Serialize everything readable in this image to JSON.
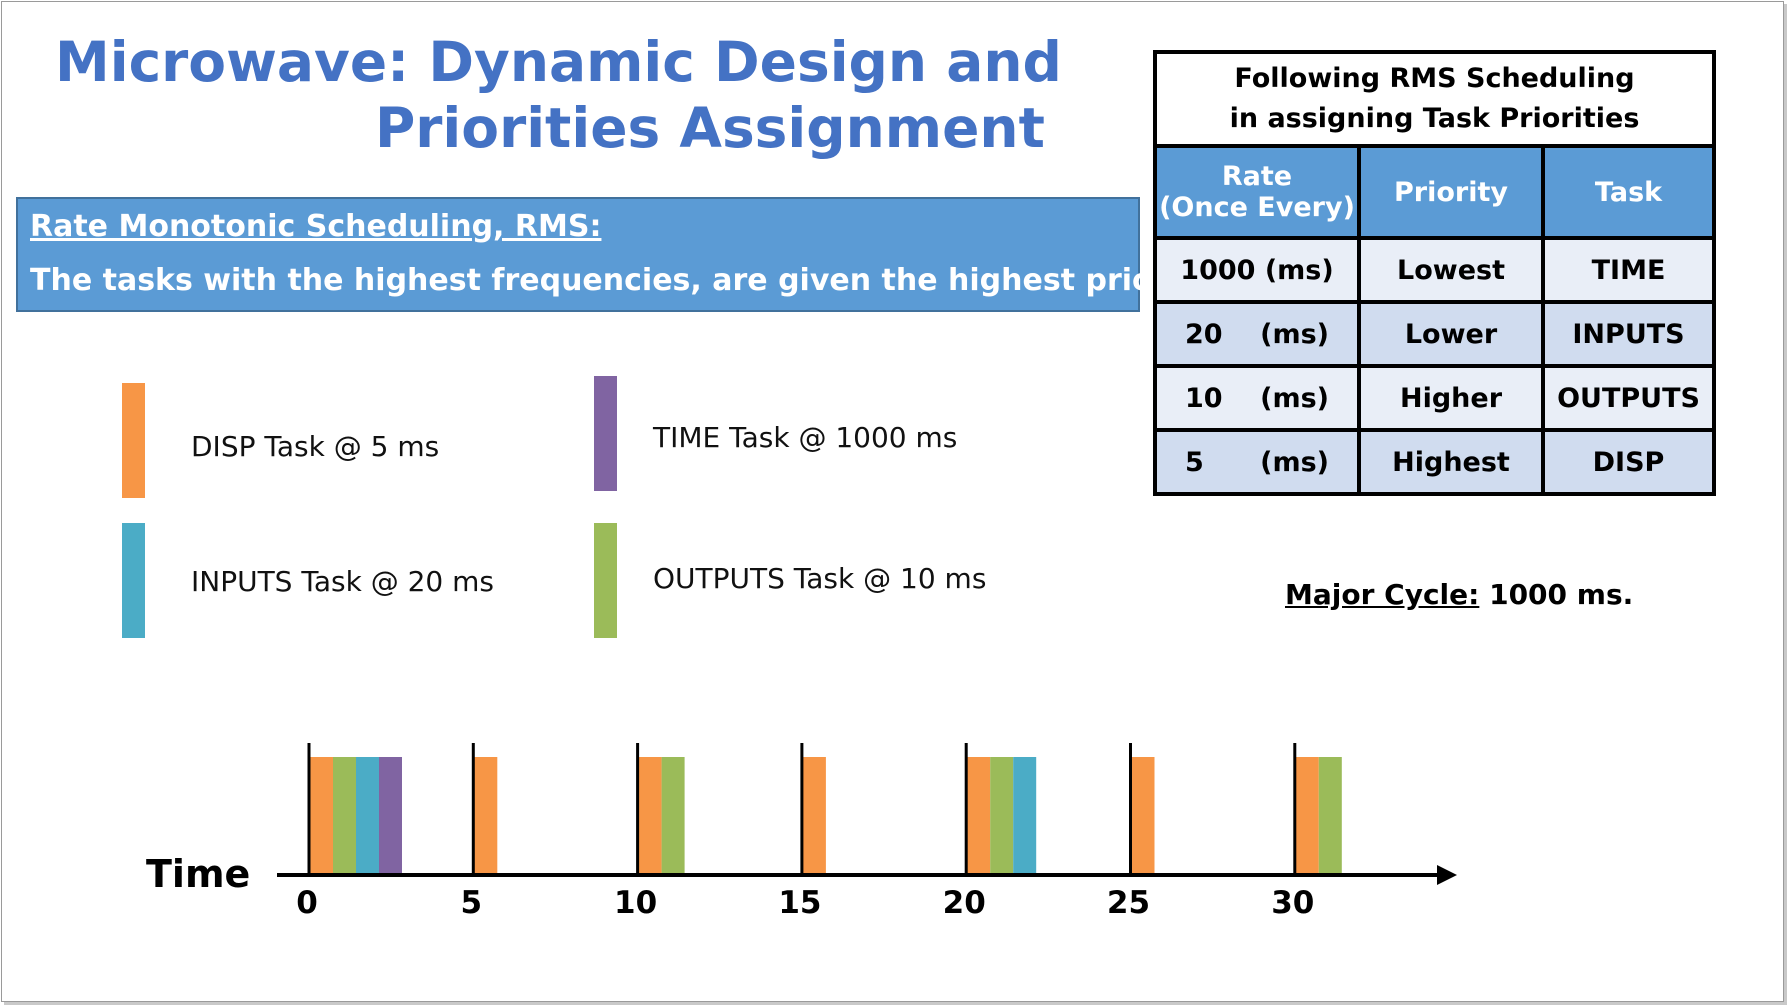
{
  "title": {
    "line1": "Microwave: Dynamic Design and",
    "line2": "Priorities Assignment"
  },
  "rms": {
    "heading": "Rate Monotonic Scheduling, RMS:",
    "text": "The tasks with the highest frequencies, are given the highest priorities."
  },
  "colors": {
    "DISP": "#f79646",
    "INPUTS": "#4bacc6",
    "TIME": "#8064a2",
    "OUTPUTS": "#9bbb59",
    "accent": "#4472c4",
    "box": "#5b9bd5"
  },
  "legend": [
    {
      "task": "DISP",
      "label": "DISP Task @ 5 ms"
    },
    {
      "task": "TIME",
      "label": "TIME Task @ 1000 ms"
    },
    {
      "task": "INPUTS",
      "label": "INPUTS Task @ 20 ms"
    },
    {
      "task": "OUTPUTS",
      "label": "OUTPUTS Task @ 10 ms"
    }
  ],
  "table": {
    "caption_line1": "Following RMS Scheduling",
    "caption_line2": "in assigning Task Priorities",
    "headers": {
      "rate_line1": "Rate",
      "rate_line2": "(Once Every)",
      "priority": "Priority",
      "task": "Task"
    },
    "rows": [
      {
        "rate": "1000 (ms)",
        "priority": "Lowest",
        "task": "TIME"
      },
      {
        "rate": "20    (ms)",
        "priority": "Lower",
        "task": "INPUTS"
      },
      {
        "rate": "10    (ms)",
        "priority": "Higher",
        "task": "OUTPUTS"
      },
      {
        "rate": "5      (ms)",
        "priority": "Highest",
        "task": "DISP"
      }
    ]
  },
  "major_cycle": {
    "label": "Major Cycle:",
    "value": " 1000 ms."
  },
  "timeline": {
    "axis_label": "Time",
    "ticks": [
      0,
      5,
      10,
      15,
      20,
      25,
      30
    ],
    "slots": [
      {
        "t": 0,
        "tasks": [
          "DISP",
          "OUTPUTS",
          "INPUTS",
          "TIME"
        ]
      },
      {
        "t": 5,
        "tasks": [
          "DISP"
        ]
      },
      {
        "t": 10,
        "tasks": [
          "DISP",
          "OUTPUTS"
        ]
      },
      {
        "t": 15,
        "tasks": [
          "DISP"
        ]
      },
      {
        "t": 20,
        "tasks": [
          "DISP",
          "OUTPUTS",
          "INPUTS"
        ]
      },
      {
        "t": 25,
        "tasks": [
          "DISP"
        ]
      },
      {
        "t": 30,
        "tasks": [
          "DISP",
          "OUTPUTS"
        ]
      }
    ]
  }
}
